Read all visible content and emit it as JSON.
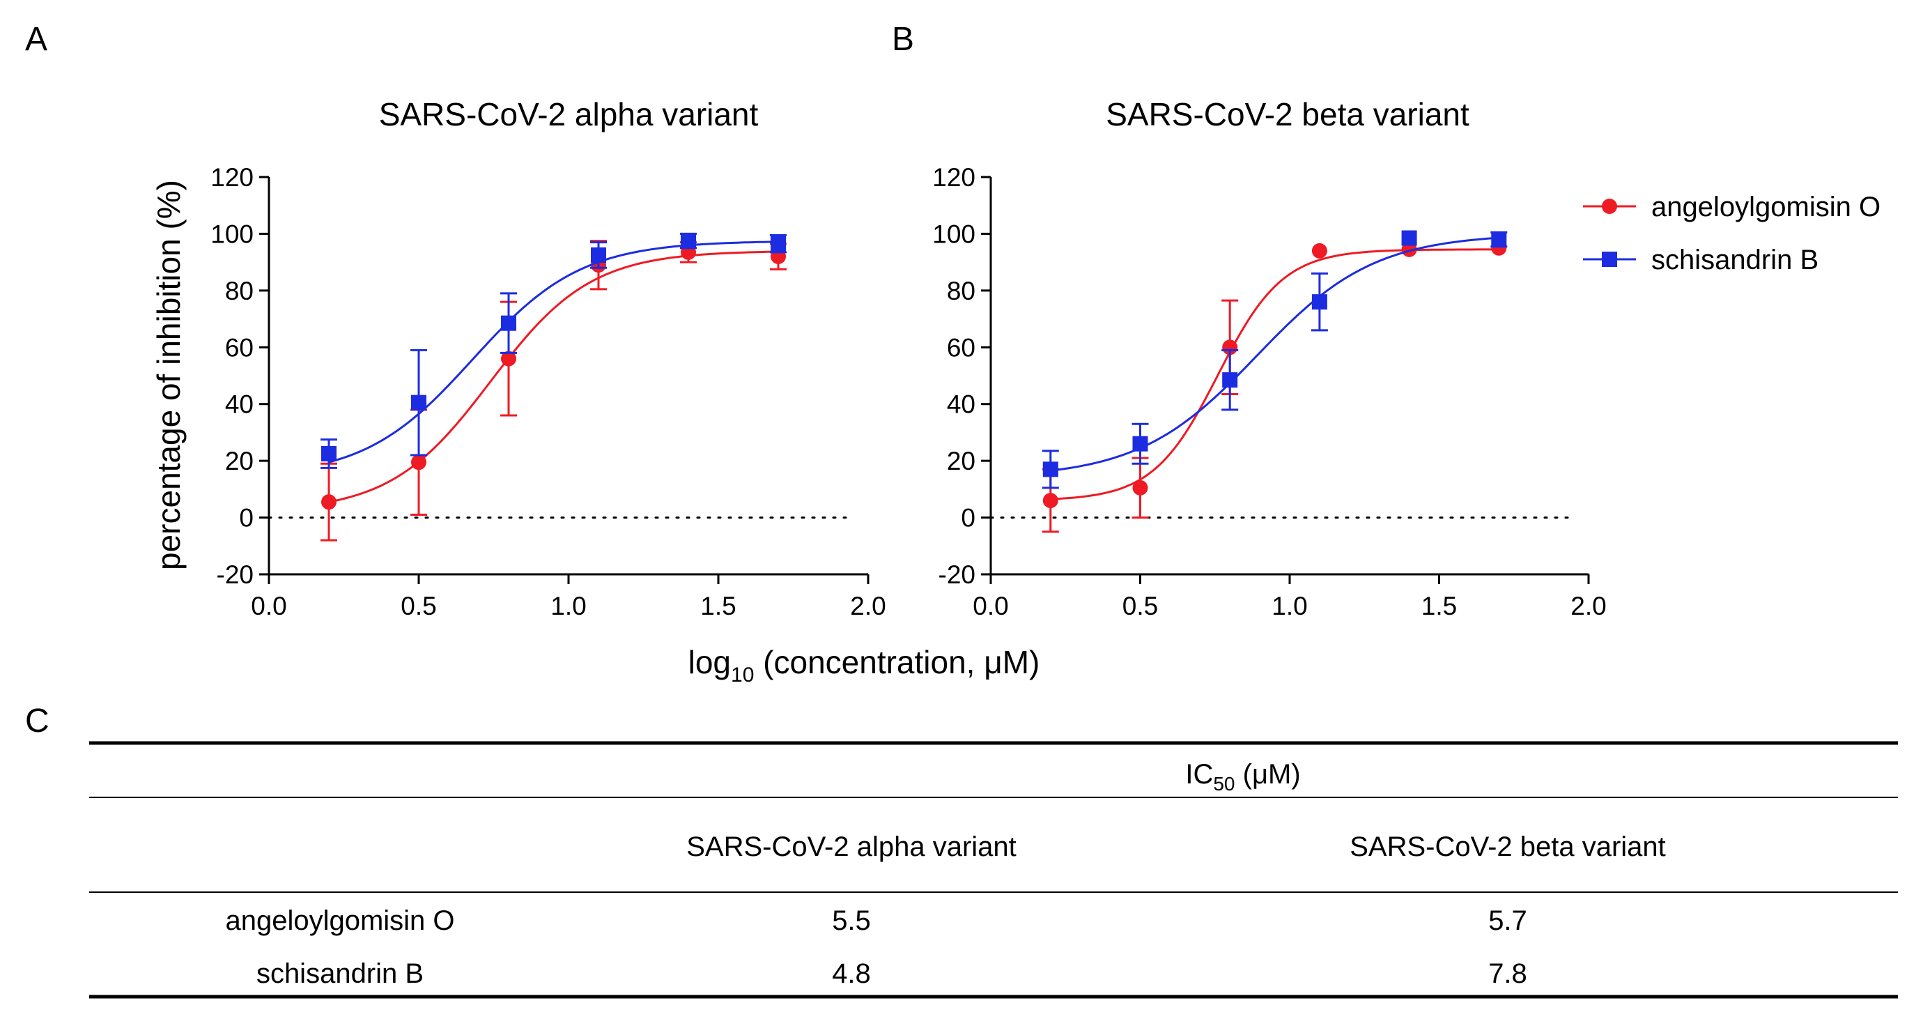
{
  "panels": {
    "a": "A",
    "b": "B",
    "c": "C"
  },
  "colors": {
    "angeloylgomisin": "#ee1b24",
    "schisandrin": "#1c2ce0",
    "axis": "#000000"
  },
  "shared_xlabel": {
    "base": "log",
    "subscript": "10",
    "rest": " (concentration, μM)"
  },
  "legend": [
    {
      "name": "angeloylgomisin O",
      "marker": "circle",
      "color": "#ee1b24"
    },
    {
      "name": "schisandrin B",
      "marker": "square",
      "color": "#1c2ce0"
    }
  ],
  "chart_data": [
    {
      "type": "scatter",
      "title": "SARS-CoV-2 alpha variant",
      "xlabel": "log10 (concentration, μM)",
      "ylabel": "percentage of inhibition (%)",
      "xlim": [
        0.0,
        2.0
      ],
      "ylim": [
        -20,
        120
      ],
      "xticks": [
        "0.0",
        "0.5",
        "1.0",
        "1.5",
        "2.0"
      ],
      "yticks": [
        "-20",
        "0",
        "20",
        "40",
        "60",
        "80",
        "100",
        "120"
      ],
      "reference_line_y": 0,
      "series": [
        {
          "name": "angeloylgomisin O",
          "color": "#ee1b24",
          "marker": "circle",
          "x": [
            0.2,
            0.5,
            0.8,
            1.1,
            1.4,
            1.7
          ],
          "y": [
            5.5,
            19.5,
            56,
            89,
            93.5,
            92
          ],
          "err": [
            13.5,
            18.5,
            20,
            8.5,
            3.5,
            4.5
          ],
          "fit": {
            "bottom": 2,
            "top": 94,
            "logec50": 0.74,
            "hill": 2.6
          }
        },
        {
          "name": "schisandrin B",
          "color": "#1c2ce0",
          "marker": "square",
          "x": [
            0.2,
            0.5,
            0.8,
            1.1,
            1.4,
            1.7
          ],
          "y": [
            22.5,
            40.5,
            68.5,
            92.5,
            97.5,
            96.5
          ],
          "err": [
            5,
            18.5,
            10.5,
            4.5,
            2.5,
            3
          ],
          "fit": {
            "bottom": 14,
            "top": 97.5,
            "logec50": 0.68,
            "hill": 2.4
          }
        }
      ]
    },
    {
      "type": "scatter",
      "title": "SARS-CoV-2 beta variant",
      "xlabel": "log10 (concentration, μM)",
      "ylabel": "",
      "xlim": [
        0.0,
        2.0
      ],
      "ylim": [
        -20,
        120
      ],
      "xticks": [
        "0.0",
        "0.5",
        "1.0",
        "1.5",
        "2.0"
      ],
      "yticks": [
        "-20",
        "0",
        "20",
        "40",
        "60",
        "80",
        "100",
        "120"
      ],
      "reference_line_y": 0,
      "series": [
        {
          "name": "angeloylgomisin O",
          "color": "#ee1b24",
          "marker": "circle",
          "x": [
            0.2,
            0.5,
            0.8,
            1.1,
            1.4,
            1.7
          ],
          "y": [
            6,
            10.5,
            60,
            94,
            94.5,
            95
          ],
          "err": [
            11,
            10.5,
            16.5,
            0,
            0,
            0
          ],
          "fit": {
            "bottom": 6,
            "top": 94.5,
            "logec50": 0.76,
            "hill": 4.0
          }
        },
        {
          "name": "schisandrin B",
          "color": "#1c2ce0",
          "marker": "square",
          "x": [
            0.2,
            0.5,
            0.8,
            1.1,
            1.4,
            1.7
          ],
          "y": [
            17,
            26,
            48.5,
            76,
            98.5,
            98
          ],
          "err": [
            6.5,
            7,
            10.5,
            10,
            0,
            2.5
          ],
          "fit": {
            "bottom": 14,
            "top": 100,
            "logec50": 0.89,
            "hill": 2.2
          }
        }
      ]
    }
  ],
  "table": {
    "header_ic": "IC",
    "header_sub": "50",
    "header_unit": " (μM)",
    "columns": [
      "SARS-CoV-2 alpha variant",
      "SARS-CoV-2 beta variant"
    ],
    "rows": [
      {
        "name": "angeloylgomisin O",
        "alpha": "5.5",
        "beta": "5.7"
      },
      {
        "name": "schisandrin B",
        "alpha": "4.8",
        "beta": "7.8"
      }
    ]
  }
}
